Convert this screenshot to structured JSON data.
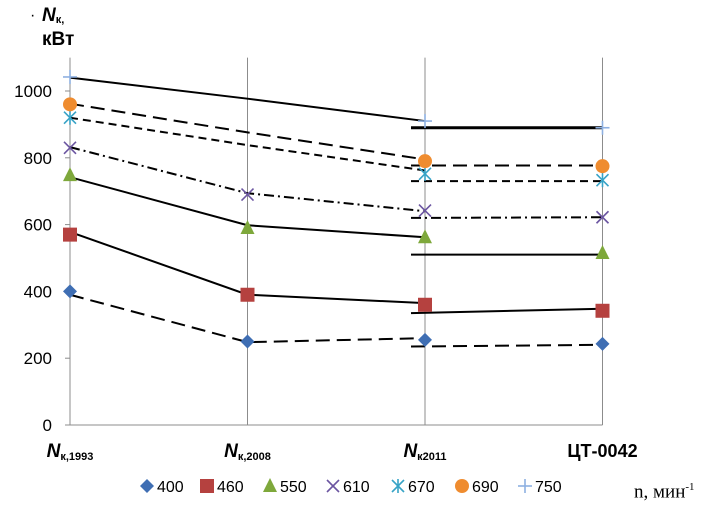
{
  "chart_data": {
    "type": "line",
    "ylabel": {
      "symbol": "N",
      "subscript": "к,",
      "unit": "кВт"
    },
    "xlabel": {
      "text": "n,  мин",
      "sup": "-1"
    },
    "ylim": [
      0,
      1100
    ],
    "yticks": [
      0,
      200,
      400,
      600,
      800,
      1000
    ],
    "grid": {
      "vertical": true,
      "horizontal": false
    },
    "legend_position": "bottom",
    "categories": [
      {
        "main": "N",
        "sub": "к,1993"
      },
      {
        "main": "N",
        "sub": "к,2008"
      },
      {
        "main": "N",
        "sub": "к2011"
      },
      {
        "main": "ЦТ-0042",
        "sub": ""
      }
    ],
    "series": [
      {
        "name": "400",
        "marker": "diamond",
        "color": "#3f6eb3",
        "values": [
          400,
          250,
          255,
          243
        ]
      },
      {
        "name": "460",
        "marker": "square",
        "color": "#b5413f",
        "values": [
          570,
          390,
          360,
          342
        ]
      },
      {
        "name": "550",
        "marker": "triangle",
        "color": "#7ea83b",
        "values": [
          748,
          590,
          562,
          515
        ]
      },
      {
        "name": "610",
        "marker": "x",
        "color": "#6b55a1",
        "values": [
          830,
          690,
          642,
          622
        ]
      },
      {
        "name": "670",
        "marker": "star",
        "color": "#37a3c6",
        "values": [
          920,
          null,
          752,
          733
        ]
      },
      {
        "name": "690",
        "marker": "circle",
        "color": "#ef8c2f",
        "values": [
          960,
          null,
          790,
          775
        ]
      },
      {
        "name": "750",
        "marker": "plus",
        "color": "#8eb0e1",
        "values": [
          1042,
          null,
          910,
          890
        ]
      }
    ],
    "trend_lines": [
      {
        "series": "400",
        "style": "long-dash",
        "points": [
          [
            0,
            390
          ],
          [
            1,
            248
          ],
          [
            2,
            260
          ]
        ],
        "level": [
          2,
          3,
          235,
          240
        ]
      },
      {
        "series": "460",
        "style": "solid",
        "points": [
          [
            0,
            578
          ],
          [
            1,
            390
          ],
          [
            2,
            365
          ]
        ],
        "level": [
          2,
          3,
          335,
          348
        ]
      },
      {
        "series": "550",
        "style": "solid",
        "points": [
          [
            0,
            742
          ],
          [
            1,
            598
          ],
          [
            2,
            562
          ]
        ],
        "level": [
          2,
          3,
          510,
          510
        ]
      },
      {
        "series": "610",
        "style": "dash-dot",
        "points": [
          [
            0,
            832
          ],
          [
            1,
            694
          ],
          [
            2,
            640
          ]
        ],
        "level": [
          2,
          3,
          620,
          622
        ]
      },
      {
        "series": "670",
        "style": "short-dash",
        "points": [
          [
            0,
            920
          ],
          [
            1,
            838
          ],
          [
            2,
            762
          ]
        ],
        "level": [
          2,
          3,
          730,
          730
        ]
      },
      {
        "series": "690",
        "style": "long-dash",
        "points": [
          [
            0,
            962
          ],
          [
            1,
            876
          ],
          [
            2,
            795
          ]
        ],
        "level": [
          2,
          3,
          777,
          777
        ]
      },
      {
        "series": "750",
        "style": "solid",
        "points": [
          [
            0,
            1040
          ],
          [
            1,
            977
          ],
          [
            2,
            910
          ]
        ],
        "level": [
          2,
          3,
          890,
          890
        ]
      }
    ]
  }
}
